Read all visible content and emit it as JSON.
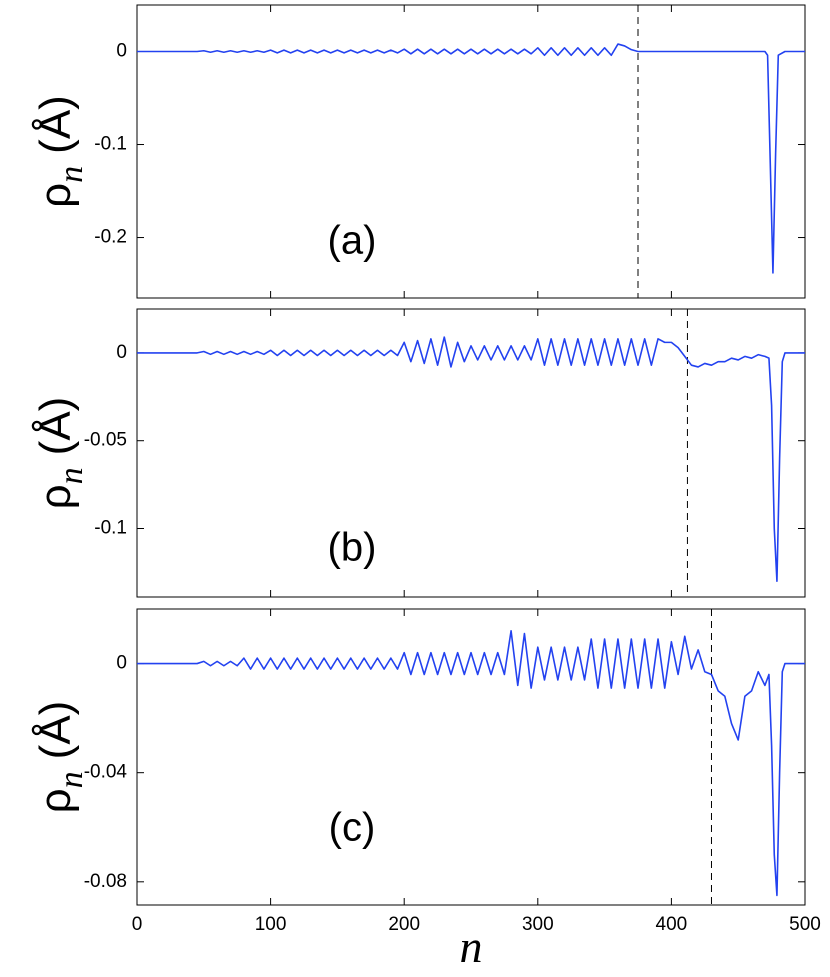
{
  "chart_data": [
    {
      "type": "line",
      "annotation": "(a)",
      "ylabel_symbol": "ρ",
      "ylabel_subscript": "n",
      "ylabel_unit": "(Å)",
      "xlim": [
        0,
        500
      ],
      "xticks": [
        0,
        100,
        200,
        300,
        400,
        500
      ],
      "ylim": [
        -0.265,
        0.05
      ],
      "yticks": [
        -0.2,
        -0.1,
        0
      ],
      "vline": 375,
      "color": "#2342f0",
      "x": [
        0,
        5,
        10,
        15,
        20,
        25,
        30,
        35,
        40,
        45,
        50,
        55,
        60,
        65,
        70,
        75,
        80,
        85,
        90,
        95,
        100,
        105,
        110,
        115,
        120,
        125,
        130,
        135,
        140,
        145,
        150,
        155,
        160,
        165,
        170,
        175,
        180,
        185,
        190,
        195,
        200,
        205,
        210,
        215,
        220,
        225,
        230,
        235,
        240,
        245,
        250,
        255,
        260,
        265,
        270,
        275,
        280,
        285,
        290,
        295,
        300,
        305,
        310,
        315,
        320,
        325,
        330,
        335,
        340,
        345,
        350,
        355,
        360,
        365,
        370,
        375,
        380,
        385,
        390,
        395,
        400,
        405,
        410,
        415,
        420,
        425,
        430,
        435,
        440,
        445,
        450,
        455,
        460,
        465,
        470,
        472,
        474,
        476,
        478,
        480,
        485,
        490,
        495,
        500
      ],
      "values": [
        0,
        0,
        0,
        0,
        0,
        0,
        0,
        0,
        0,
        0,
        0.0008,
        -0.0008,
        0.0008,
        -0.0008,
        0.0008,
        -0.0008,
        0.0008,
        -0.0008,
        0.0008,
        -0.0008,
        0.0015,
        -0.0015,
        0.0015,
        -0.0015,
        0.0015,
        -0.0015,
        0.0015,
        -0.0015,
        0.0015,
        -0.0015,
        0.0015,
        -0.0015,
        0.0015,
        -0.0015,
        0.0015,
        -0.0015,
        0.0015,
        -0.0015,
        0.0015,
        -0.0015,
        0.0025,
        -0.0025,
        0.0025,
        -0.0025,
        0.0025,
        -0.0025,
        0.0025,
        -0.0025,
        0.0025,
        -0.0025,
        0.0025,
        -0.0025,
        0.0025,
        -0.0025,
        0.0025,
        -0.0025,
        0.0025,
        -0.0025,
        0.0025,
        -0.0025,
        0.004,
        -0.004,
        0.004,
        -0.004,
        0.004,
        -0.004,
        0.004,
        -0.004,
        0.004,
        -0.004,
        0.004,
        -0.004,
        0.008,
        0.006,
        0.002,
        0,
        0,
        0,
        0,
        0,
        0,
        0,
        0,
        0,
        0,
        0,
        0,
        0,
        0,
        0,
        0,
        0,
        0,
        0,
        0,
        -0.004,
        -0.12,
        -0.238,
        -0.11,
        -0.004,
        0,
        0,
        0,
        0
      ]
    },
    {
      "type": "line",
      "annotation": "(b)",
      "ylabel_symbol": "ρ",
      "ylabel_subscript": "n",
      "ylabel_unit": "(Å)",
      "xlim": [
        0,
        500
      ],
      "xticks": [
        0,
        100,
        200,
        300,
        400,
        500
      ],
      "ylim": [
        -0.139,
        0.025
      ],
      "yticks": [
        -0.1,
        -0.05,
        0
      ],
      "vline": 412,
      "color": "#2342f0",
      "x": [
        0,
        5,
        10,
        15,
        20,
        25,
        30,
        35,
        40,
        45,
        50,
        55,
        60,
        65,
        70,
        75,
        80,
        85,
        90,
        95,
        100,
        105,
        110,
        115,
        120,
        125,
        130,
        135,
        140,
        145,
        150,
        155,
        160,
        165,
        170,
        175,
        180,
        185,
        190,
        195,
        200,
        205,
        210,
        215,
        220,
        225,
        230,
        235,
        240,
        245,
        250,
        255,
        260,
        265,
        270,
        275,
        280,
        285,
        290,
        295,
        300,
        305,
        310,
        315,
        320,
        325,
        330,
        335,
        340,
        345,
        350,
        355,
        360,
        365,
        370,
        375,
        380,
        385,
        390,
        395,
        400,
        405,
        410,
        415,
        420,
        425,
        430,
        435,
        440,
        445,
        450,
        455,
        460,
        465,
        470,
        473,
        475,
        477,
        479,
        481,
        483,
        485,
        490,
        495,
        500
      ],
      "values": [
        0,
        0,
        0,
        0,
        0,
        0,
        0,
        0,
        0,
        0,
        0.0008,
        -0.0008,
        0.0008,
        -0.0008,
        0.0008,
        -0.0008,
        0.0008,
        -0.0008,
        0.0008,
        -0.0008,
        0.0015,
        -0.0015,
        0.0015,
        -0.0015,
        0.0015,
        -0.0015,
        0.0015,
        -0.0015,
        0.0015,
        -0.0015,
        0.0015,
        -0.0015,
        0.0015,
        -0.0015,
        0.0015,
        -0.0015,
        0.0015,
        -0.0015,
        0.0015,
        -0.0015,
        0.006,
        -0.005,
        0.007,
        -0.006,
        0.008,
        -0.007,
        0.009,
        -0.008,
        0.006,
        -0.005,
        0.004,
        -0.004,
        0.004,
        -0.004,
        0.004,
        -0.004,
        0.004,
        -0.004,
        0.004,
        -0.004,
        0.008,
        -0.007,
        0.008,
        -0.007,
        0.008,
        -0.007,
        0.008,
        -0.007,
        0.008,
        -0.007,
        0.008,
        -0.007,
        0.008,
        -0.007,
        0.008,
        -0.007,
        0.008,
        -0.007,
        0.008,
        0.006,
        0.006,
        0.003,
        -0.002,
        -0.007,
        -0.008,
        -0.006,
        -0.007,
        -0.005,
        -0.005,
        -0.003,
        -0.004,
        -0.002,
        -0.003,
        -0.001,
        -0.002,
        -0.003,
        -0.03,
        -0.1,
        -0.13,
        -0.06,
        -0.005,
        0,
        0,
        0,
        0
      ]
    },
    {
      "type": "line",
      "annotation": "(c)",
      "ylabel_symbol": "ρ",
      "ylabel_subscript": "n",
      "ylabel_unit": "(Å)",
      "xlabel": "n",
      "xlim": [
        0,
        500
      ],
      "xticks": [
        0,
        100,
        200,
        300,
        400,
        500
      ],
      "ylim": [
        -0.0885,
        0.02
      ],
      "yticks": [
        -0.08,
        -0.04,
        0
      ],
      "vline": 430,
      "color": "#2342f0",
      "x": [
        0,
        5,
        10,
        15,
        20,
        25,
        30,
        35,
        40,
        45,
        50,
        55,
        60,
        65,
        70,
        75,
        80,
        85,
        90,
        95,
        100,
        105,
        110,
        115,
        120,
        125,
        130,
        135,
        140,
        145,
        150,
        155,
        160,
        165,
        170,
        175,
        180,
        185,
        190,
        195,
        200,
        205,
        210,
        215,
        220,
        225,
        230,
        235,
        240,
        245,
        250,
        255,
        260,
        265,
        270,
        275,
        280,
        285,
        290,
        295,
        300,
        305,
        310,
        315,
        320,
        325,
        330,
        335,
        340,
        345,
        350,
        355,
        360,
        365,
        370,
        375,
        380,
        385,
        390,
        395,
        400,
        405,
        410,
        415,
        420,
        425,
        430,
        435,
        440,
        445,
        450,
        455,
        460,
        465,
        470,
        473,
        475,
        477,
        479,
        481,
        483,
        485,
        490,
        495,
        500
      ],
      "values": [
        0,
        0,
        0,
        0,
        0,
        0,
        0,
        0,
        0,
        0,
        0.0008,
        -0.0008,
        0.0008,
        -0.0008,
        0.0008,
        -0.0008,
        0.002,
        -0.002,
        0.002,
        -0.002,
        0.002,
        -0.002,
        0.002,
        -0.002,
        0.002,
        -0.002,
        0.002,
        -0.002,
        0.002,
        -0.002,
        0.002,
        -0.002,
        0.002,
        -0.002,
        0.002,
        -0.002,
        0.002,
        -0.002,
        0.002,
        -0.002,
        0.004,
        -0.004,
        0.004,
        -0.004,
        0.004,
        -0.004,
        0.004,
        -0.004,
        0.004,
        -0.004,
        0.004,
        -0.004,
        0.004,
        -0.004,
        0.004,
        -0.004,
        0.012,
        -0.008,
        0.011,
        -0.009,
        0.006,
        -0.006,
        0.006,
        -0.006,
        0.006,
        -0.006,
        0.006,
        -0.006,
        0.009,
        -0.009,
        0.009,
        -0.009,
        0.009,
        -0.009,
        0.009,
        -0.009,
        0.009,
        -0.009,
        0.009,
        -0.009,
        0.008,
        -0.004,
        0.01,
        -0.002,
        0.005,
        -0.003,
        -0.004,
        -0.01,
        -0.012,
        -0.022,
        -0.028,
        -0.012,
        -0.01,
        -0.003,
        -0.008,
        -0.004,
        -0.03,
        -0.07,
        -0.085,
        -0.04,
        -0.003,
        0,
        0,
        0,
        0
      ]
    }
  ]
}
